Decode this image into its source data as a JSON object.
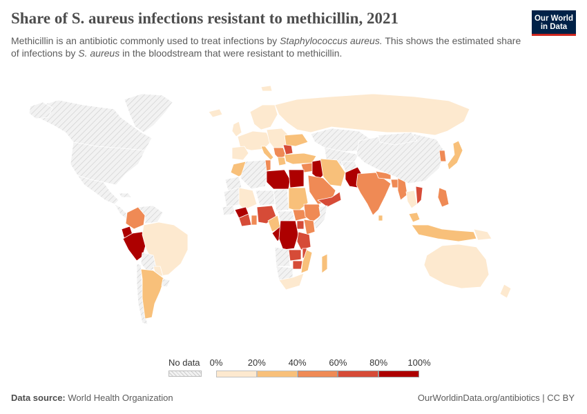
{
  "header": {
    "title": "Share of S. aureus infections resistant to methicillin, 2021",
    "subtitle_part1": "Methicillin is an antibiotic commonly used to treat infections by ",
    "subtitle_em1": "Staphylococcus aureus.",
    "subtitle_part2": " This shows the estimated share of infections by ",
    "subtitle_em2": "S. aureus",
    "subtitle_part3": " in the bloodstream that were resistant to methicillin."
  },
  "logo": {
    "line1": "Our World",
    "line2": "in Data"
  },
  "legend": {
    "no_data_label": "No data",
    "ticks": [
      "0%",
      "20%",
      "40%",
      "60%",
      "80%",
      "100%"
    ],
    "bins": [
      {
        "range": "0-20%",
        "color": "#fde9cf"
      },
      {
        "range": "20-40%",
        "color": "#f8c07a"
      },
      {
        "range": "40-60%",
        "color": "#ef8a55"
      },
      {
        "range": "60-80%",
        "color": "#d64b37"
      },
      {
        "range": "80-100%",
        "color": "#ad0000"
      }
    ]
  },
  "colors": {
    "no_data_fill": "#f2f2f2",
    "no_data_hatch": "#cccccc",
    "border": "#ffffff"
  },
  "footer": {
    "source_label": "Data source:",
    "source_value": "World Health Organization",
    "url": "OurWorldinData.org/antibiotics | CC BY"
  }
}
